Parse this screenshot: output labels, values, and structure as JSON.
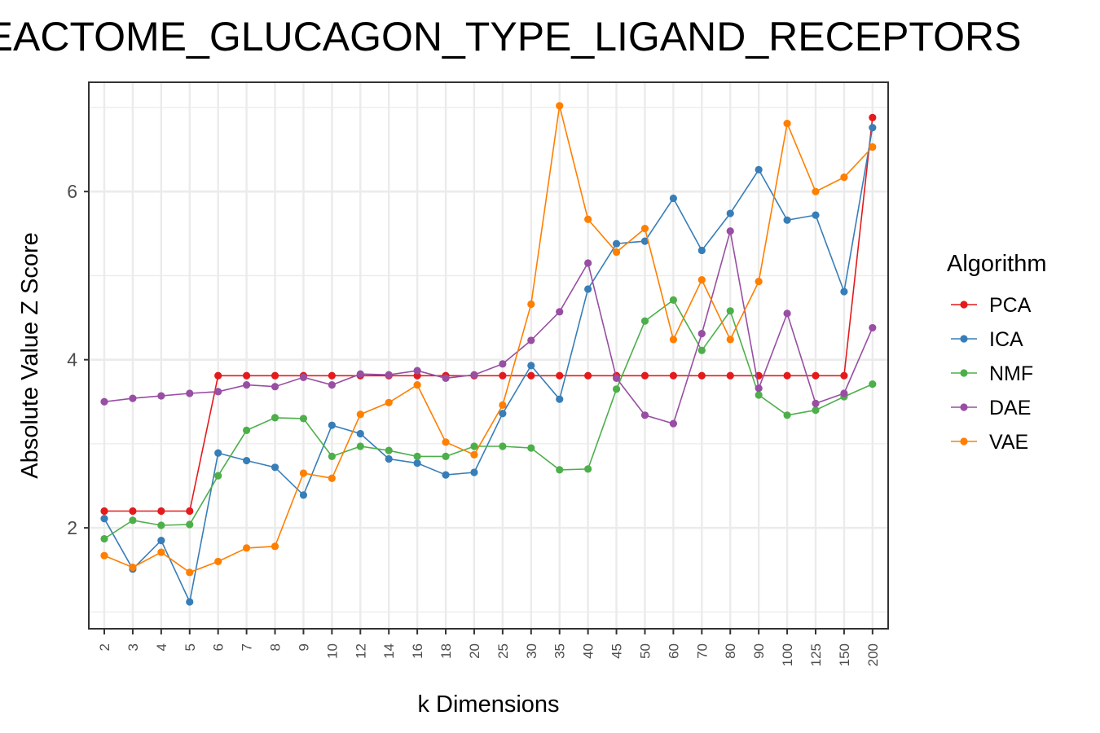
{
  "chart_data": {
    "type": "line",
    "title": "REACTOME_GLUCAGON_TYPE_LIGAND_RECEPTORS",
    "xlabel": "k Dimensions",
    "ylabel": "Absolute Value Z Score",
    "ylim": [
      0.8,
      7.3
    ],
    "yticks": [
      2,
      4,
      6
    ],
    "grid": true,
    "legend_title": "Algorithm",
    "legend_position": "right",
    "categories": [
      "2",
      "3",
      "4",
      "5",
      "6",
      "7",
      "8",
      "9",
      "10",
      "12",
      "14",
      "16",
      "18",
      "20",
      "25",
      "30",
      "35",
      "40",
      "45",
      "50",
      "60",
      "70",
      "80",
      "90",
      "100",
      "125",
      "150",
      "200"
    ],
    "series": [
      {
        "name": "PCA",
        "color": "#e41a1c",
        "values": [
          2.2,
          2.2,
          2.2,
          2.2,
          3.81,
          3.81,
          3.81,
          3.81,
          3.81,
          3.81,
          3.81,
          3.81,
          3.81,
          3.81,
          3.81,
          3.81,
          3.81,
          3.81,
          3.81,
          3.81,
          3.81,
          3.81,
          3.81,
          3.81,
          3.81,
          3.81,
          3.81,
          6.88
        ]
      },
      {
        "name": "ICA",
        "color": "#377eb8",
        "values": [
          2.11,
          1.51,
          1.85,
          1.12,
          2.89,
          2.8,
          2.72,
          2.39,
          3.22,
          3.12,
          2.82,
          2.77,
          2.63,
          2.66,
          3.36,
          3.93,
          3.53,
          4.84,
          5.38,
          5.41,
          5.92,
          5.3,
          5.74,
          6.26,
          5.66,
          5.72,
          4.81,
          6.76
        ]
      },
      {
        "name": "NMF",
        "color": "#4daf4a",
        "values": [
          1.87,
          2.09,
          2.03,
          2.04,
          2.62,
          3.16,
          3.31,
          3.3,
          2.85,
          2.97,
          2.92,
          2.85,
          2.85,
          2.97,
          2.97,
          2.95,
          2.69,
          2.7,
          3.65,
          4.46,
          4.71,
          4.11,
          4.58,
          3.58,
          3.34,
          3.4,
          3.56,
          3.71
        ]
      },
      {
        "name": "DAE",
        "color": "#984ea3",
        "values": [
          3.5,
          3.54,
          3.57,
          3.6,
          3.62,
          3.7,
          3.68,
          3.79,
          3.7,
          3.83,
          3.82,
          3.87,
          3.78,
          3.82,
          3.95,
          4.23,
          4.57,
          5.15,
          3.78,
          3.34,
          3.24,
          4.31,
          5.53,
          3.66,
          4.55,
          3.48,
          3.6,
          4.38
        ]
      },
      {
        "name": "VAE",
        "color": "#ff7f00",
        "values": [
          1.67,
          1.53,
          1.71,
          1.47,
          1.6,
          1.76,
          1.78,
          2.65,
          2.59,
          3.35,
          3.49,
          3.7,
          3.02,
          2.87,
          3.46,
          4.66,
          7.02,
          5.67,
          5.28,
          5.56,
          4.24,
          4.95,
          4.24,
          4.93,
          6.81,
          6.0,
          6.17,
          6.53
        ]
      }
    ]
  }
}
